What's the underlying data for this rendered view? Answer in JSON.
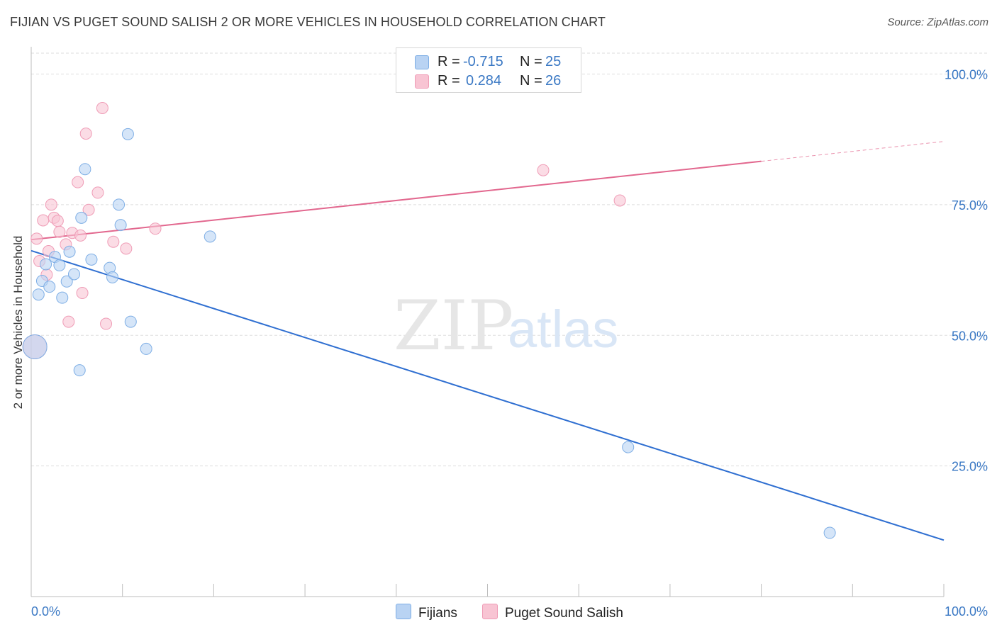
{
  "header": {
    "title": "FIJIAN VS PUGET SOUND SALISH 2 OR MORE VEHICLES IN HOUSEHOLD CORRELATION CHART",
    "source_label": "Source:",
    "source_name": "ZipAtlas.com"
  },
  "watermark": {
    "part1": "ZIP",
    "part2": "atlas"
  },
  "colors": {
    "fijian_fill": "#b9d3f3",
    "fijian_stroke": "#7eaee5",
    "fijian_line": "#2f6fd1",
    "salish_fill": "#f8c4d3",
    "salish_stroke": "#ef9cb6",
    "salish_line": "#e2678e",
    "tick_label": "#3a78c4",
    "grid": "#dedede"
  },
  "legend": {
    "rows": [
      {
        "r_label": "R =",
        "r_value": "-0.715",
        "n_label": "N =",
        "n_value": "25"
      },
      {
        "r_label": "R =",
        "r_value": "0.284",
        "n_label": "N =",
        "n_value": "26"
      }
    ]
  },
  "chart_data": {
    "type": "scatter",
    "title": "FIJIAN VS PUGET SOUND SALISH 2 OR MORE VEHICLES IN HOUSEHOLD CORRELATION CHART",
    "xlabel": "",
    "ylabel": "2 or more Vehicles in Household",
    "xlim": [
      0,
      100
    ],
    "ylim": [
      0,
      104
    ],
    "x_tick_labels": [
      "0.0%",
      "100.0%"
    ],
    "y_ticks": [
      25,
      50,
      75,
      100
    ],
    "y_tick_labels": [
      "25.0%",
      "50.0%",
      "75.0%",
      "100.0%"
    ],
    "grid": true,
    "legend_position": "top-center",
    "series": [
      {
        "name": "Fijians",
        "r": -0.715,
        "n": 25,
        "points": [
          {
            "x": 0.4,
            "y": 47.8,
            "big": true
          },
          {
            "x": 0.8,
            "y": 57.8
          },
          {
            "x": 1.2,
            "y": 60.4
          },
          {
            "x": 1.6,
            "y": 63.6
          },
          {
            "x": 2.0,
            "y": 59.3
          },
          {
            "x": 2.6,
            "y": 65.0
          },
          {
            "x": 3.1,
            "y": 63.4
          },
          {
            "x": 3.4,
            "y": 57.2
          },
          {
            "x": 3.9,
            "y": 60.3
          },
          {
            "x": 4.2,
            "y": 66.0
          },
          {
            "x": 4.7,
            "y": 61.7
          },
          {
            "x": 5.5,
            "y": 72.5
          },
          {
            "x": 5.9,
            "y": 81.8
          },
          {
            "x": 6.6,
            "y": 64.5
          },
          {
            "x": 5.3,
            "y": 43.3
          },
          {
            "x": 8.6,
            "y": 62.9
          },
          {
            "x": 8.9,
            "y": 61.1
          },
          {
            "x": 9.6,
            "y": 75.0
          },
          {
            "x": 9.8,
            "y": 71.1
          },
          {
            "x": 10.6,
            "y": 88.5
          },
          {
            "x": 10.9,
            "y": 52.6
          },
          {
            "x": 12.6,
            "y": 47.4
          },
          {
            "x": 19.6,
            "y": 68.9
          },
          {
            "x": 65.4,
            "y": 28.6
          },
          {
            "x": 87.5,
            "y": 12.2
          }
        ],
        "trend": {
          "x0": 0,
          "y0": 66.2,
          "x1": 100,
          "y1": 10.8
        }
      },
      {
        "name": "Puget Sound Salish",
        "r": 0.284,
        "n": 26,
        "points": [
          {
            "x": 0.4,
            "y": 47.8,
            "big": true
          },
          {
            "x": 0.6,
            "y": 68.5
          },
          {
            "x": 0.9,
            "y": 64.2
          },
          {
            "x": 1.3,
            "y": 72.0
          },
          {
            "x": 1.7,
            "y": 61.6
          },
          {
            "x": 1.9,
            "y": 66.1
          },
          {
            "x": 2.2,
            "y": 75.0
          },
          {
            "x": 2.5,
            "y": 72.5
          },
          {
            "x": 2.9,
            "y": 71.9
          },
          {
            "x": 3.1,
            "y": 69.8
          },
          {
            "x": 3.8,
            "y": 67.4
          },
          {
            "x": 4.1,
            "y": 52.6
          },
          {
            "x": 4.5,
            "y": 69.6
          },
          {
            "x": 5.1,
            "y": 79.3
          },
          {
            "x": 5.4,
            "y": 69.1
          },
          {
            "x": 5.6,
            "y": 58.1
          },
          {
            "x": 6.0,
            "y": 88.6
          },
          {
            "x": 6.3,
            "y": 74.0
          },
          {
            "x": 7.3,
            "y": 77.3
          },
          {
            "x": 7.8,
            "y": 93.5
          },
          {
            "x": 8.2,
            "y": 52.2
          },
          {
            "x": 9.0,
            "y": 67.9
          },
          {
            "x": 10.4,
            "y": 66.6
          },
          {
            "x": 13.6,
            "y": 70.4
          },
          {
            "x": 56.1,
            "y": 81.6
          },
          {
            "x": 64.5,
            "y": 75.8
          }
        ],
        "trend": {
          "x0": 0,
          "y0": 68.3,
          "x1": 80,
          "y1": 83.3,
          "dash_to_x": 100,
          "dash_to_y": 87.1
        }
      }
    ]
  }
}
